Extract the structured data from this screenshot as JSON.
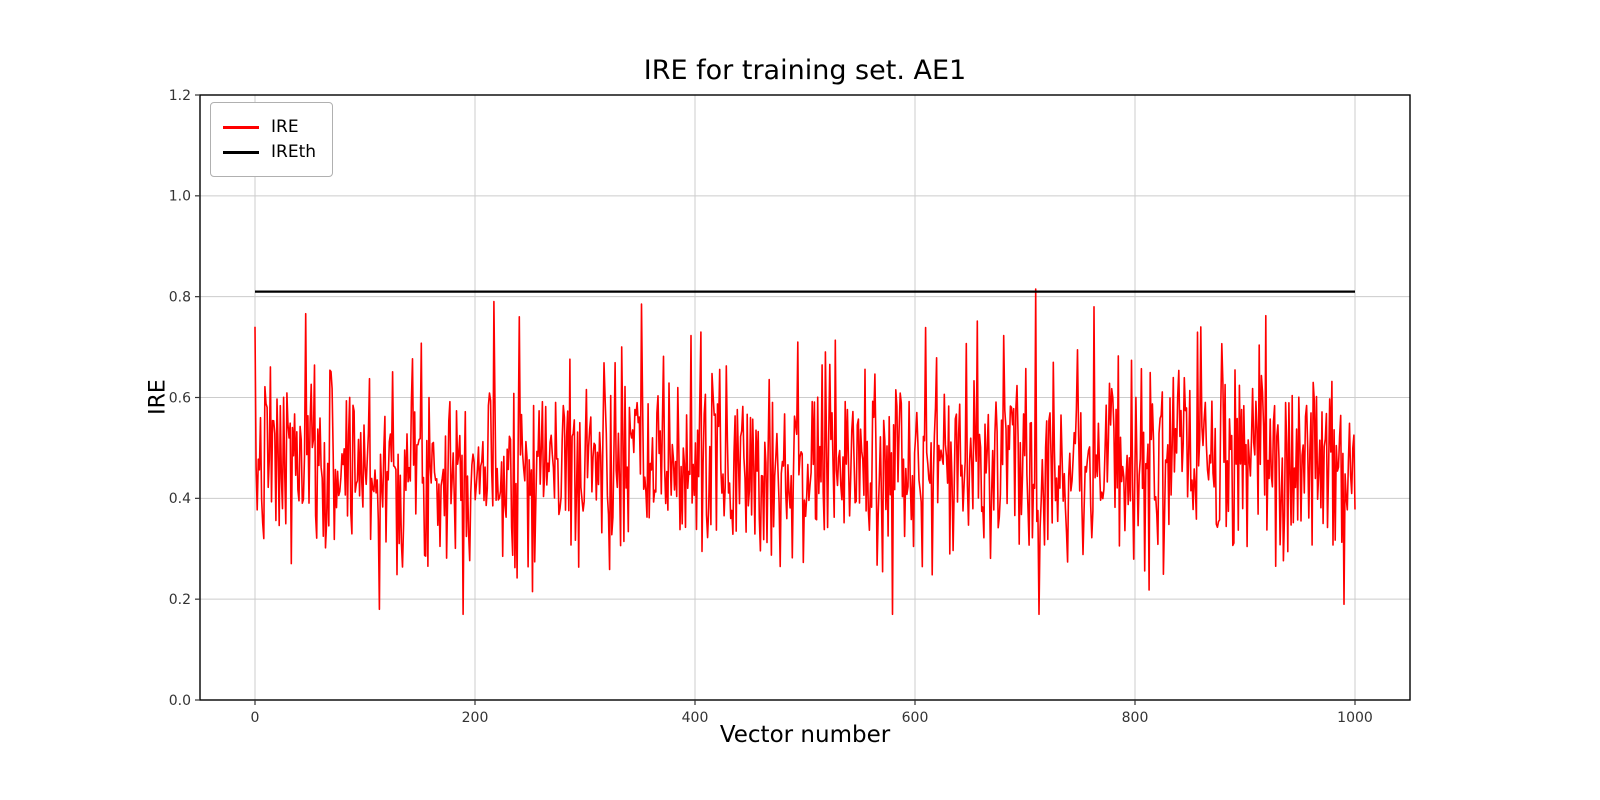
{
  "chart_data": {
    "type": "line",
    "title": "IRE for training set. AE1",
    "xlabel": "Vector number",
    "ylabel": "IRE",
    "xlim": [
      -50,
      1050
    ],
    "ylim": [
      0.0,
      1.2
    ],
    "xticks": {
      "values": [
        0,
        200,
        400,
        600,
        800,
        1000
      ],
      "labels": [
        "0",
        "200",
        "400",
        "600",
        "800",
        "1000"
      ]
    },
    "yticks": {
      "values": [
        0.0,
        0.2,
        0.4,
        0.6,
        0.8,
        1.0,
        1.2
      ],
      "labels": [
        "0.0",
        "0.2",
        "0.4",
        "0.6",
        "0.8",
        "1.0",
        "1.2"
      ]
    },
    "grid": true,
    "grid_color": "#cccccc",
    "axis_color": "#000000",
    "tick_color": "#333333",
    "legend": {
      "position": "upper left"
    },
    "series": [
      {
        "name": "IRE",
        "type": "noise-line",
        "color": "#ff0000",
        "n_points": 1000,
        "x_start": 0,
        "x_end": 1000,
        "mean": 0.47,
        "std": 0.098,
        "min": 0.17,
        "max": 0.815,
        "seed": 7,
        "linewidth": 1.6,
        "extremes": [
          {
            "x": 113,
            "y": 0.18
          },
          {
            "x": 240,
            "y": 0.76
          },
          {
            "x": 405,
            "y": 0.73
          },
          {
            "x": 580,
            "y": 0.17
          },
          {
            "x": 710,
            "y": 0.815
          },
          {
            "x": 763,
            "y": 0.78
          },
          {
            "x": 860,
            "y": 0.74
          },
          {
            "x": 990,
            "y": 0.19
          }
        ]
      },
      {
        "name": "IREth",
        "type": "hline",
        "color": "#000000",
        "value": 0.81,
        "x_start": 0,
        "x_end": 1000,
        "linewidth": 2.2
      }
    ]
  }
}
